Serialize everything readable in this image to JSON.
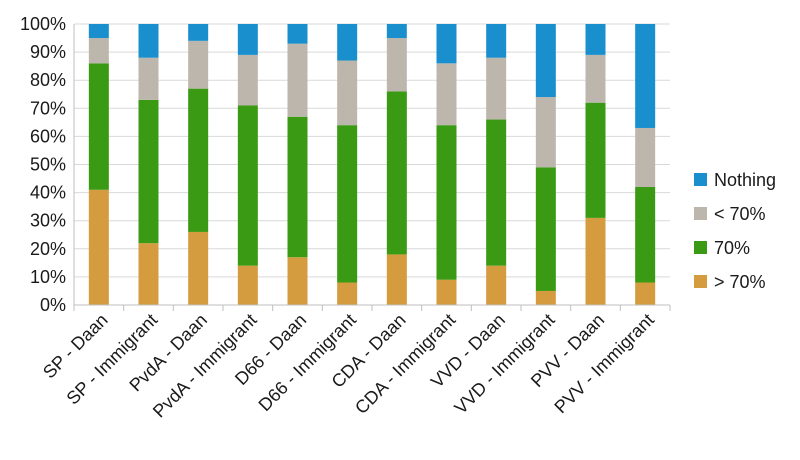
{
  "chart_data": {
    "type": "bar",
    "stacked": true,
    "categories": [
      "SP - Daan",
      "SP - Immigrant",
      "PvdA - Daan",
      "PvdA - Immigrant",
      "D66 - Daan",
      "D66 - Immigrant",
      "CDA - Daan",
      "CDA - Immigrant",
      "VVD - Daan",
      "VVD - Immigrant",
      "PVV - Daan",
      "PVV - Immigrant"
    ],
    "yticks": [
      "0%",
      "10%",
      "20%",
      "30%",
      "40%",
      "50%",
      "60%",
      "70%",
      "80%",
      "90%",
      "100%"
    ],
    "ylim": [
      0,
      100
    ],
    "legend_position": "right",
    "series": [
      {
        "name": "> 70%",
        "color": "#d49c3e",
        "values": [
          41,
          22,
          26,
          14,
          17,
          8,
          18,
          9,
          14,
          5,
          31,
          8
        ]
      },
      {
        "name": "70%",
        "color": "#3a9a14",
        "values": [
          45,
          51,
          51,
          57,
          50,
          56,
          58,
          55,
          52,
          44,
          41,
          34
        ]
      },
      {
        "name": "< 70%",
        "color": "#bdb6ad",
        "values": [
          9,
          15,
          17,
          18,
          26,
          23,
          19,
          22,
          22,
          25,
          17,
          21
        ]
      },
      {
        "name": "Nothing",
        "color": "#1a8fce",
        "values": [
          5,
          12,
          6,
          11,
          7,
          13,
          5,
          14,
          12,
          26,
          11,
          37
        ]
      }
    ],
    "legend_order": [
      3,
      2,
      1,
      0
    ]
  }
}
